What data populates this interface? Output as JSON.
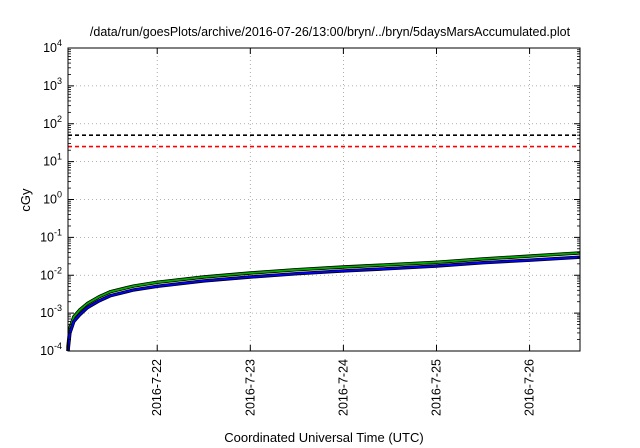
{
  "chart_data": {
    "type": "line",
    "title": "/data/run/goesPlots/archive/2016-07-26/13:00/bryn/../bryn/5daysMarsAccumulated.plot",
    "xlabel": "Coordinated Universal Time (UTC)",
    "ylabel": "cGy",
    "y_scale": "log",
    "ylim": [
      0.0001,
      10000
    ],
    "xlim": [
      "2016-07-21T01:00",
      "2016-07-26T13:00"
    ],
    "grid": true,
    "legend": "none",
    "y_ticks": [
      {
        "value": 0.0001,
        "base": "10",
        "exp": "-4"
      },
      {
        "value": 0.001,
        "base": "10",
        "exp": "-3"
      },
      {
        "value": 0.01,
        "base": "10",
        "exp": "-2"
      },
      {
        "value": 0.1,
        "base": "10",
        "exp": "-1"
      },
      {
        "value": 1,
        "base": "10",
        "exp": "0"
      },
      {
        "value": 10,
        "base": "10",
        "exp": "1"
      },
      {
        "value": 100,
        "base": "10",
        "exp": "2"
      },
      {
        "value": 1000,
        "base": "10",
        "exp": "3"
      },
      {
        "value": 10000,
        "base": "10",
        "exp": "4"
      }
    ],
    "x_ticks": [
      {
        "value": "2016-07-22T00:00",
        "label": "2016-7-22"
      },
      {
        "value": "2016-07-23T00:00",
        "label": "2016-7-23"
      },
      {
        "value": "2016-07-24T00:00",
        "label": "2016-7-24"
      },
      {
        "value": "2016-07-25T00:00",
        "label": "2016-7-25"
      },
      {
        "value": "2016-07-26T00:00",
        "label": "2016-7-26"
      }
    ],
    "thresholds": [
      {
        "value": 50,
        "color": "#000000",
        "style": "dashed"
      },
      {
        "value": 25,
        "color": "#ff0000",
        "style": "dashed"
      }
    ],
    "series": [
      {
        "color": "#00aa00",
        "points": [
          [
            "2016-07-21T01:00",
            0.00013
          ],
          [
            "2016-07-21T01:30",
            0.0004
          ],
          [
            "2016-07-21T02:30",
            0.0008
          ],
          [
            "2016-07-21T04:00",
            0.0012
          ],
          [
            "2016-07-21T06:00",
            0.0018
          ],
          [
            "2016-07-21T09:00",
            0.0027
          ],
          [
            "2016-07-21T12:00",
            0.0037
          ],
          [
            "2016-07-21T18:00",
            0.0052
          ],
          [
            "2016-07-22T00:00",
            0.0065
          ],
          [
            "2016-07-22T12:00",
            0.009
          ],
          [
            "2016-07-23T00:00",
            0.0115
          ],
          [
            "2016-07-23T12:00",
            0.014
          ],
          [
            "2016-07-24T00:00",
            0.0165
          ],
          [
            "2016-07-24T12:00",
            0.019
          ],
          [
            "2016-07-25T00:00",
            0.022
          ],
          [
            "2016-07-25T12:00",
            0.027
          ],
          [
            "2016-07-26T00:00",
            0.032
          ],
          [
            "2016-07-26T13:00",
            0.039
          ]
        ]
      },
      {
        "color": "#0000ff",
        "points": [
          [
            "2016-07-21T01:00",
            0.0001
          ],
          [
            "2016-07-21T01:30",
            0.0003
          ],
          [
            "2016-07-21T02:30",
            0.0006
          ],
          [
            "2016-07-21T04:00",
            0.0009
          ],
          [
            "2016-07-21T06:00",
            0.0014
          ],
          [
            "2016-07-21T09:00",
            0.0021
          ],
          [
            "2016-07-21T12:00",
            0.0029
          ],
          [
            "2016-07-21T18:00",
            0.0041
          ],
          [
            "2016-07-22T00:00",
            0.0051
          ],
          [
            "2016-07-22T12:00",
            0.0071
          ],
          [
            "2016-07-23T00:00",
            0.009
          ],
          [
            "2016-07-23T12:00",
            0.011
          ],
          [
            "2016-07-24T00:00",
            0.013
          ],
          [
            "2016-07-24T12:00",
            0.015
          ],
          [
            "2016-07-25T00:00",
            0.0175
          ],
          [
            "2016-07-25T12:00",
            0.0215
          ],
          [
            "2016-07-26T00:00",
            0.025
          ],
          [
            "2016-07-26T13:00",
            0.03
          ]
        ]
      }
    ]
  }
}
